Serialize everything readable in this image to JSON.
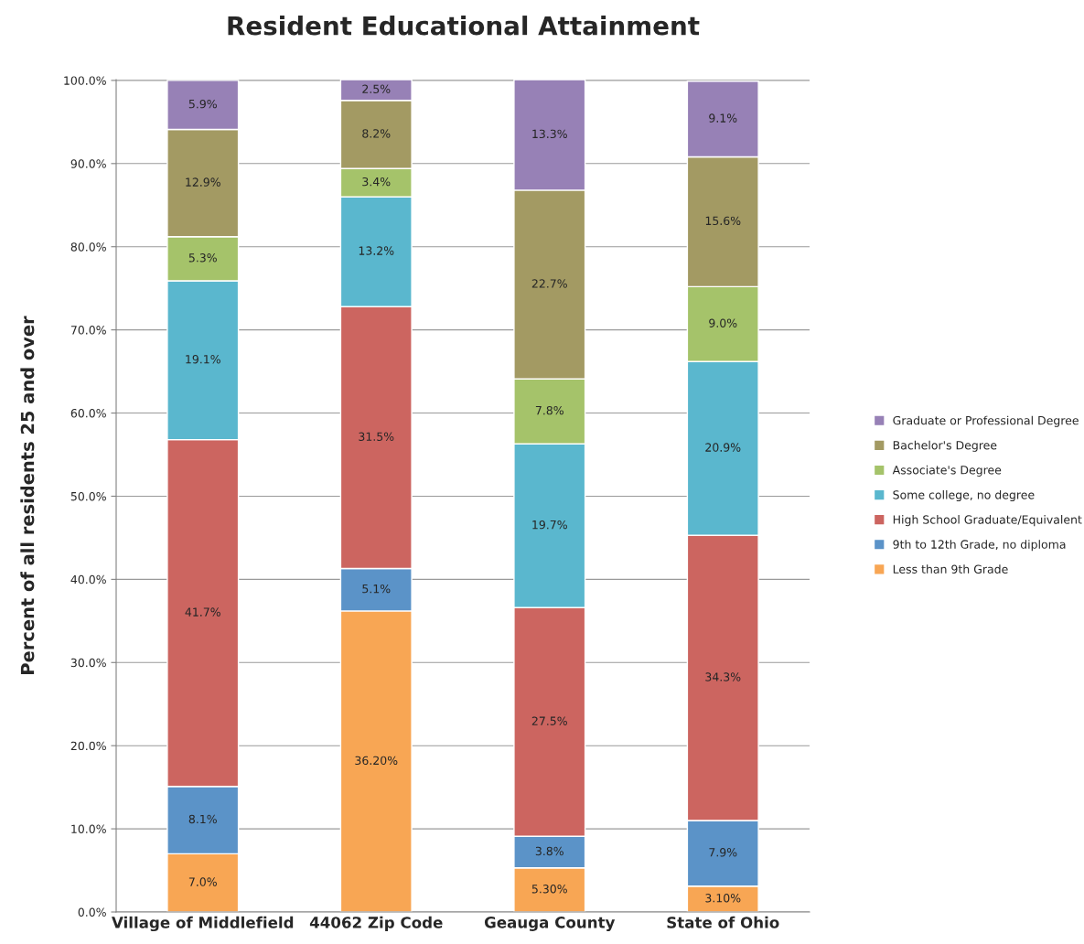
{
  "chart_data": {
    "type": "bar",
    "title": "Resident Educational Attainment",
    "ylabel": "Percent of all residents 25 and over",
    "categories": [
      "Village of Middlefield",
      "44062 Zip Code",
      "Geauga County",
      "State of Ohio"
    ],
    "stacked": true,
    "ylim": [
      0,
      100.1
    ],
    "yticks": [
      {
        "value": 0,
        "label": "0.0%"
      },
      {
        "value": 10,
        "label": "10.0%"
      },
      {
        "value": 20,
        "label": "20.0%"
      },
      {
        "value": 30,
        "label": "30.0%"
      },
      {
        "value": 40,
        "label": "40.0%"
      },
      {
        "value": 50,
        "label": "50.0%"
      },
      {
        "value": 60,
        "label": "60.0%"
      },
      {
        "value": 70,
        "label": "70.0%"
      },
      {
        "value": 80,
        "label": "80.0%"
      },
      {
        "value": 90,
        "label": "90.0%"
      },
      {
        "value": 100,
        "label": "100.0%"
      }
    ],
    "grid": "y",
    "legend": "right",
    "series": [
      {
        "name": "Less than 9th Grade",
        "color": "#f8a654",
        "values": [
          7.0,
          36.2,
          5.3,
          3.1
        ],
        "value_labels": [
          "7.0%",
          "36.20%",
          "5.30%",
          "3.10%"
        ]
      },
      {
        "name": "9th to 12th Grade, no diploma",
        "color": "#5b93c8",
        "values": [
          8.1,
          5.1,
          3.8,
          7.9
        ],
        "value_labels": [
          "8.1%",
          "5.1%",
          "3.8%",
          "7.9%"
        ]
      },
      {
        "name": "High School Graduate/Equivalent",
        "color": "#cc6560",
        "values": [
          41.7,
          31.5,
          27.5,
          34.3
        ],
        "value_labels": [
          "41.7%",
          "31.5%",
          "27.5%",
          "34.3%"
        ]
      },
      {
        "name": "Some college, no degree",
        "color": "#5ab7ce",
        "values": [
          19.1,
          13.2,
          19.7,
          20.9
        ],
        "value_labels": [
          "19.1%",
          "13.2%",
          "19.7%",
          "20.9%"
        ]
      },
      {
        "name": "Associate's Degree",
        "color": "#a5c36a",
        "values": [
          5.3,
          3.4,
          7.8,
          9.0
        ],
        "value_labels": [
          "5.3%",
          "3.4%",
          "7.8%",
          "9.0%"
        ]
      },
      {
        "name": "Bachelor's Degree",
        "color": "#a39a63",
        "values": [
          12.9,
          8.2,
          22.7,
          15.6
        ],
        "value_labels": [
          "12.9%",
          "8.2%",
          "22.7%",
          "15.6%"
        ]
      },
      {
        "name": "Graduate or Professional Degree",
        "color": "#9781b6",
        "values": [
          5.9,
          2.5,
          13.3,
          9.1
        ],
        "value_labels": [
          "5.9%",
          "2.5%",
          "13.3%",
          "9.1%"
        ]
      }
    ]
  }
}
